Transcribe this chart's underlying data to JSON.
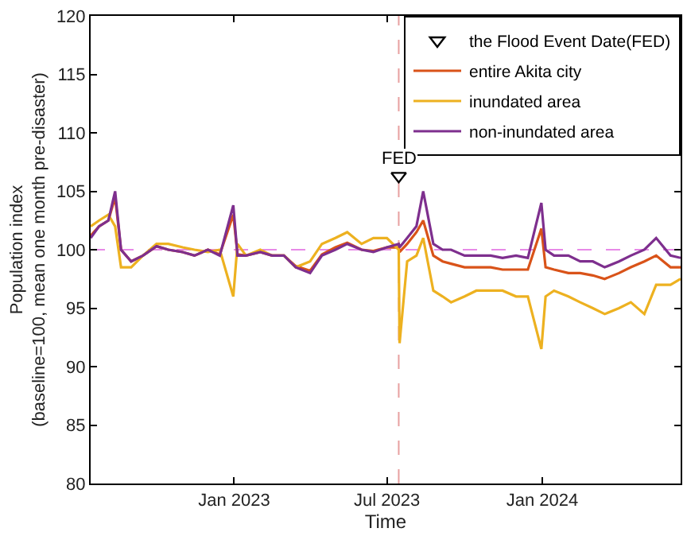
{
  "chart_data": {
    "type": "line",
    "xlabel": "Time",
    "ylabel": "Population index\n(baseline=100, mean one month pre-disaster)",
    "x": [
      "2022-07-15",
      "2022-07-25",
      "2022-08-05",
      "2022-08-13",
      "2022-08-20",
      "2022-09-01",
      "2022-09-15",
      "2022-10-01",
      "2022-10-15",
      "2022-11-01",
      "2022-11-15",
      "2022-12-01",
      "2022-12-15",
      "2022-12-31",
      "2023-01-05",
      "2023-01-15",
      "2023-02-01",
      "2023-02-15",
      "2023-03-01",
      "2023-03-15",
      "2023-04-01",
      "2023-04-15",
      "2023-05-01",
      "2023-05-15",
      "2023-06-01",
      "2023-06-15",
      "2023-07-01",
      "2023-07-15",
      "2023-07-16",
      "2023-07-25",
      "2023-08-05",
      "2023-08-13",
      "2023-08-25",
      "2023-09-05",
      "2023-09-15",
      "2023-10-01",
      "2023-10-15",
      "2023-11-01",
      "2023-11-15",
      "2023-12-01",
      "2023-12-15",
      "2023-12-31",
      "2024-01-05",
      "2024-01-15",
      "2024-02-01",
      "2024-02-15",
      "2024-03-01",
      "2024-03-15",
      "2024-04-01",
      "2024-04-15",
      "2024-05-01",
      "2024-05-15",
      "2024-06-01",
      "2024-06-13"
    ],
    "series": [
      {
        "name": "the Flood Event Date(FED)",
        "type": "scatter",
        "color": "#000000",
        "marker": "triangle",
        "x": [
          "2023-07-15"
        ],
        "values": [
          106.3
        ]
      },
      {
        "name": "entire Akita city",
        "color": "#d95319",
        "values": [
          101.2,
          102,
          102.5,
          104.5,
          100,
          99,
          99.5,
          100.3,
          100,
          99.8,
          99.5,
          100,
          99.6,
          103,
          99.6,
          99.5,
          99.8,
          99.5,
          99.5,
          98.6,
          98.2,
          99.6,
          100.2,
          100.6,
          100,
          99.9,
          100.2,
          100.2,
          99.8,
          100.5,
          101.5,
          102.5,
          99.5,
          99,
          98.8,
          98.5,
          98.5,
          98.5,
          98.3,
          98.3,
          98.3,
          101.8,
          98.5,
          98.3,
          98,
          98,
          97.8,
          97.5,
          98,
          98.5,
          99,
          99.5,
          98.5,
          98.5
        ]
      },
      {
        "name": "inundated area",
        "color": "#edb120",
        "values": [
          102,
          102.5,
          103,
          102,
          98.5,
          98.5,
          99.5,
          100.5,
          100.5,
          100.2,
          100,
          99.8,
          100,
          96,
          100.5,
          99.5,
          100,
          99.5,
          99.5,
          98.5,
          99,
          100.5,
          101,
          101.5,
          100.5,
          101,
          101,
          100,
          92,
          99,
          99.5,
          101,
          96.5,
          96,
          95.5,
          96,
          96.5,
          96.5,
          96.5,
          96,
          96,
          91.5,
          96,
          96.5,
          96,
          95.5,
          95,
          94.5,
          95,
          95.5,
          94.5,
          97,
          97,
          97.5
        ]
      },
      {
        "name": "non-inundated area",
        "color": "#7e2f8e",
        "values": [
          101,
          102,
          102.5,
          105,
          100,
          99,
          99.5,
          100.3,
          100,
          99.8,
          99.5,
          100,
          99.5,
          103.8,
          99.5,
          99.5,
          99.8,
          99.5,
          99.5,
          98.5,
          98,
          99.5,
          100,
          100.5,
          100,
          99.8,
          100.2,
          100.5,
          100.2,
          101,
          102,
          105,
          100.5,
          100,
          100,
          99.5,
          99.5,
          99.5,
          99.3,
          99.5,
          99.3,
          104,
          100,
          99.5,
          99.5,
          99,
          99,
          98.5,
          99,
          99.5,
          100,
          101,
          99.5,
          99.3
        ]
      }
    ],
    "annotations": [
      {
        "text": "FED",
        "x": "2023-07-15",
        "y": 107.8
      }
    ],
    "ref_lines": [
      {
        "axis": "y",
        "value": 100,
        "color": "#e88ae8",
        "line_style": "dashed"
      },
      {
        "axis": "x",
        "value": "2023-07-15",
        "color": "#e8a0a0",
        "line_style": "dashed"
      }
    ],
    "xlim": [
      "2022-07-15",
      "2024-06-13"
    ],
    "xticks": [
      {
        "value": "2023-01-01",
        "label": "Jan 2023"
      },
      {
        "value": "2023-07-01",
        "label": "Jul 2023"
      },
      {
        "value": "2024-01-01",
        "label": "Jan 2024"
      }
    ],
    "ylim": [
      80,
      120
    ],
    "yticks": [
      80,
      85,
      90,
      95,
      100,
      105,
      110,
      115,
      120
    ],
    "grid": false,
    "legend": "top right",
    "marker": "none",
    "line_style": "solid"
  }
}
